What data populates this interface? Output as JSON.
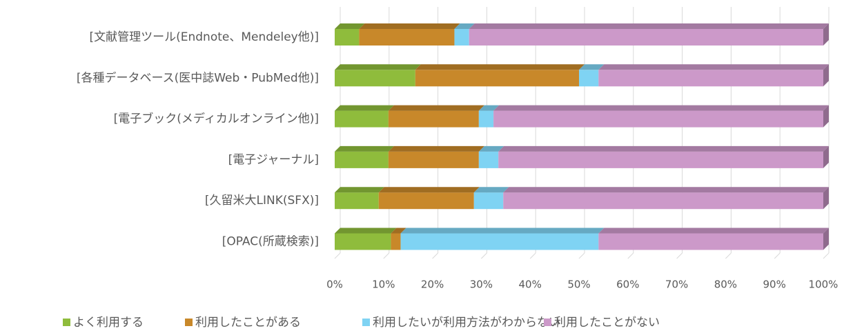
{
  "chart_data": {
    "type": "bar",
    "orientation": "horizontal",
    "stacked": true,
    "categories": [
      "[文献管理ツール(Endnote、Mendeley他)]",
      "[各種データベース(医中誌Web・PubMed他)]",
      "[電子ブック(メディカルオンライン他)]",
      "[電子ジャーナル]",
      "[久留米大LINK(SFX)]",
      "[OPAC(所蔵検索)]"
    ],
    "series": [
      {
        "name": "よく利用する",
        "color": "#8fbc3c",
        "values": [
          5,
          16.5,
          11,
          11,
          9,
          11.5
        ]
      },
      {
        "name": "利用したことがある",
        "color": "#c8882a",
        "values": [
          19.5,
          33.5,
          18.5,
          18.5,
          19.5,
          2
        ]
      },
      {
        "name": "利用したいが利用方法がわからない",
        "color": "#7fd3f3",
        "values": [
          3,
          4,
          3,
          4,
          6,
          40.5
        ]
      },
      {
        "name": "利用したことがない",
        "color": "#cc99c9",
        "values": [
          72.5,
          46,
          67.5,
          66.5,
          65.5,
          46
        ]
      }
    ],
    "xlim": [
      0,
      100
    ],
    "xticks": [
      {
        "value": 0,
        "label": "0%"
      },
      {
        "value": 10,
        "label": "10%"
      },
      {
        "value": 20,
        "label": "20%"
      },
      {
        "value": 30,
        "label": "30%"
      },
      {
        "value": 40,
        "label": "40%"
      },
      {
        "value": 50,
        "label": "50%"
      },
      {
        "value": 60,
        "label": "60%"
      },
      {
        "value": 70,
        "label": "70%"
      },
      {
        "value": 80,
        "label": "80%"
      },
      {
        "value": 90,
        "label": "90%"
      },
      {
        "value": 100,
        "label": "100%"
      }
    ],
    "grid": true,
    "legend": "bottom"
  }
}
